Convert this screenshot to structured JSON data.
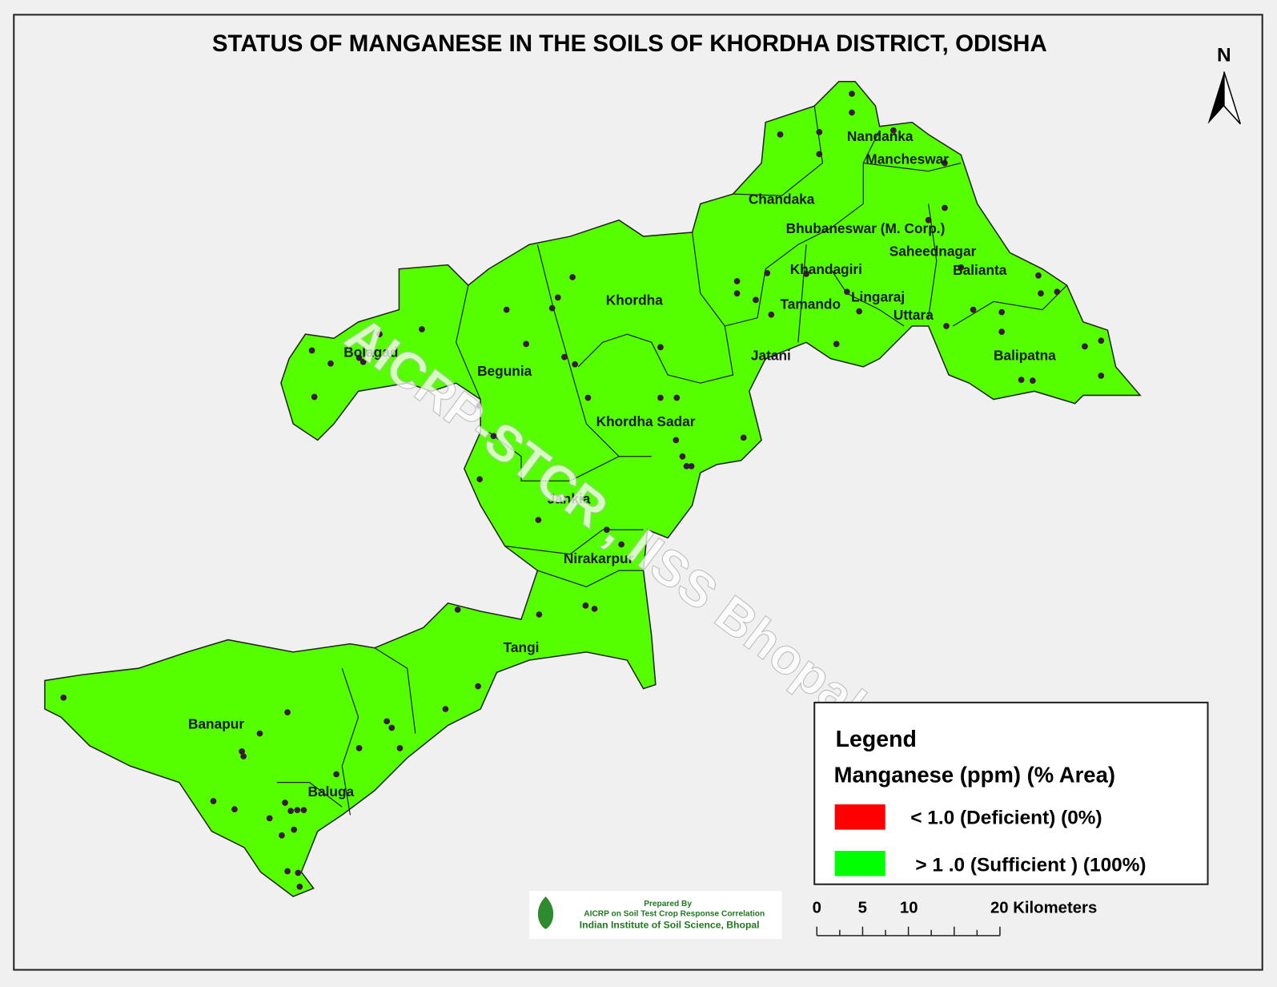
{
  "title": "STATUS OF MANGANESE  IN THE SOILS OF KHORDHA DISTRICT, ODISHA",
  "north": "N",
  "blocks": [
    "Nandanka",
    "Mancheswar",
    "Chandaka",
    "Bhubaneswar (M. Corp.)",
    "Saheednagar",
    "Khandagiri",
    "Balianta",
    "Lingaraj",
    "Tamando",
    "Uttara",
    "Khordha",
    "Bolagad",
    "Begunia",
    "Jatani",
    "Balipatna",
    "Khordha Sadar",
    "Jankia",
    "Nirakarpur",
    "Tangi",
    "Banapur",
    "Baluga"
  ],
  "watermark": "AICRP-STCR , IISS Bhopal",
  "legend": {
    "title": "Legend",
    "subtitle": "Manganese  (ppm) (% Area)",
    "items": [
      {
        "label": "< 1.0 (Deficient)  (0%)",
        "color": "#ff0000"
      },
      {
        "label": "> 1 .0  (Sufficient )  (100%)",
        "color": "#00ff00"
      }
    ]
  },
  "scale_bar": {
    "labels": [
      "0",
      "5",
      "10",
      "20 Kilometers"
    ]
  },
  "credit": {
    "line1": "Prepared By",
    "line2": "AICRP on Soil Test Crop Response Correlation",
    "line3": "Indian Institute of Soil Science, Bhopal"
  }
}
